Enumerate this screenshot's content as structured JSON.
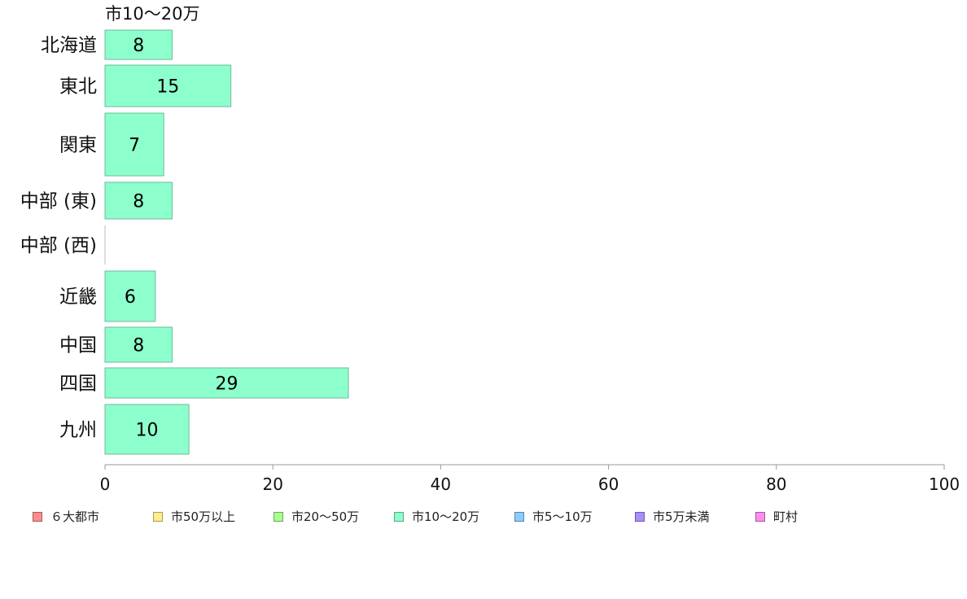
{
  "chart_data": {
    "type": "bar",
    "orientation": "horizontal",
    "title": "市10〜20万",
    "categories": [
      "北海道",
      "東北",
      "関東",
      "中部 (東)",
      "中部 (西)",
      "近畿",
      "中国",
      "四国",
      "九州"
    ],
    "series": [
      {
        "name": "市10〜20万",
        "values": [
          8,
          15,
          7,
          8,
          0,
          6,
          8,
          29,
          10
        ],
        "color": "#8dffcc"
      }
    ],
    "data_labels": [
      "8",
      "15",
      "7",
      "8",
      "",
      "6",
      "8",
      "29",
      "10"
    ],
    "xlim": [
      0,
      100
    ],
    "xticks": [
      0,
      20,
      40,
      60,
      80,
      100
    ],
    "xtick_labels": [
      "0",
      "20",
      "40",
      "60",
      "80",
      "100"
    ],
    "grid": false,
    "legend_position": "bottom-left"
  },
  "legend": {
    "items": [
      {
        "label": "６大都市",
        "color": "#ff8d8d"
      },
      {
        "label": "市50万以上",
        "color": "#ffee8d"
      },
      {
        "label": "市20〜50万",
        "color": "#aaff8d"
      },
      {
        "label": "市10〜20万",
        "color": "#8dffcc"
      },
      {
        "label": "市5〜10万",
        "color": "#8dccff"
      },
      {
        "label": "市5万未満",
        "color": "#aa8dff"
      },
      {
        "label": "町村",
        "color": "#ff8dee"
      }
    ]
  }
}
